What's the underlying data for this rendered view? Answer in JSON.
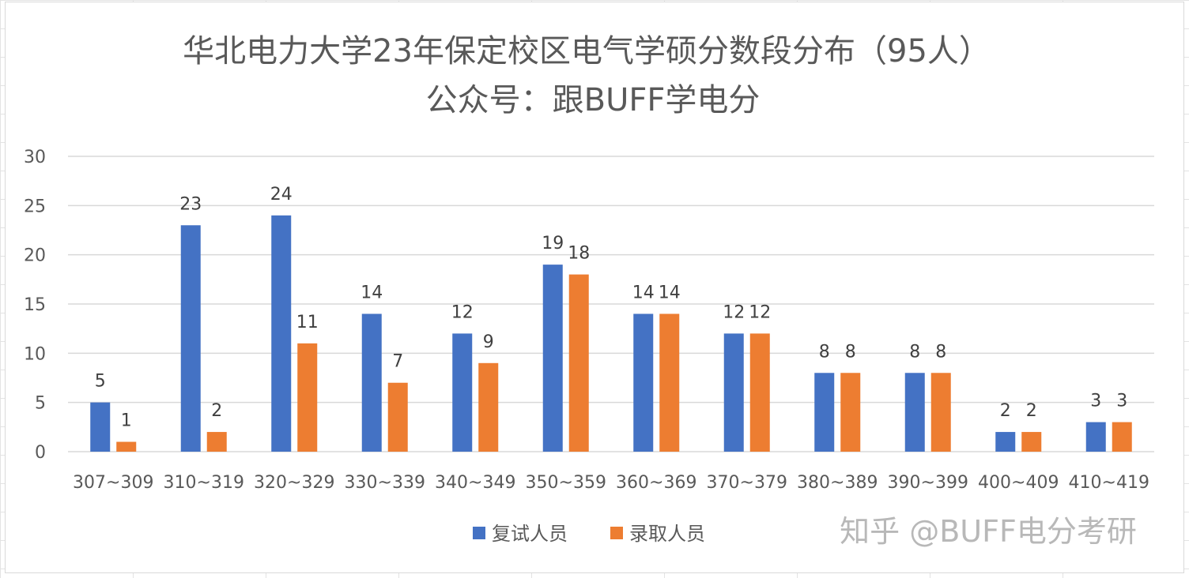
{
  "chart_data": {
    "type": "bar",
    "title": "华北电力大学23年保定校区电气学硕分数段分布（95人）",
    "subtitle": "公众号：跟BUFF学电分",
    "categories": [
      "307~309",
      "310~319",
      "320~329",
      "330~339",
      "340~349",
      "350~359",
      "360~369",
      "370~379",
      "380~389",
      "390~399",
      "400~409",
      "410~419"
    ],
    "series": [
      {
        "name": "复试人员",
        "color": "#4472C4",
        "values": [
          5,
          23,
          24,
          14,
          12,
          19,
          14,
          12,
          8,
          8,
          2,
          3
        ]
      },
      {
        "name": "录取人员",
        "color": "#ED7D31",
        "values": [
          1,
          2,
          11,
          7,
          9,
          18,
          14,
          12,
          8,
          8,
          2,
          3
        ]
      }
    ],
    "ylim": [
      0,
      30
    ],
    "yticks": [
      0,
      5,
      10,
      15,
      20,
      25,
      30
    ],
    "grid": true,
    "legend": "bottom"
  },
  "watermark": "知乎 @BUFF电分考研",
  "gridline_color": "#D9D9D9"
}
